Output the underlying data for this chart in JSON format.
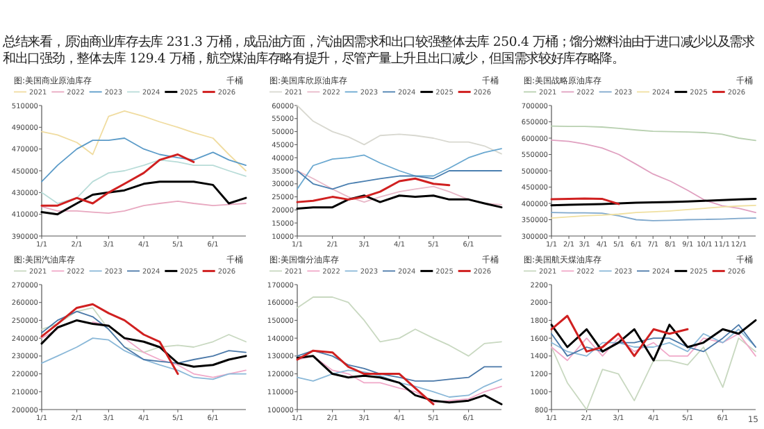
{
  "chart_data": [
    {
      "type": "other",
      "annotations": [
        "总结来看，原油商业库存去库 231.3 万桶，成品油方面，汽油因需求和出口较强整体去库 250.4 万桶；馏分燃料油由于进口减少以及需求和出口强劲，整体去库 129.4 万桶，航空煤油库存略有提升，尽管产量上升且出口减少，但国需求较好库存略降。",
        "15"
      ]
    },
    {
      "type": "line",
      "title": "图:美国商业原油库存",
      "ylabel": "千桶",
      "legend": "top",
      "x": [
        "--01-01",
        "--01-15",
        "--02-01",
        "--02-15",
        "--03-01",
        "--03-15",
        "--04-01",
        "--04-15",
        "--05-01",
        "--05-15",
        "--06-01",
        "--06-15",
        "--06-30"
      ],
      "xlim": [
        "--01-01",
        "--06-30"
      ],
      "xticks": [
        {
          "value": "--01-01",
          "label": "1/1"
        },
        {
          "value": "--02-01",
          "label": "2/1"
        },
        {
          "value": "--03-01",
          "label": "3/1"
        },
        {
          "value": "--04-01",
          "label": "4/1"
        },
        {
          "value": "--05-01",
          "label": "5/1"
        },
        {
          "value": "--06-01",
          "label": "6/1"
        }
      ],
      "ylim": [
        390000,
        510000
      ],
      "yticks": [
        390000,
        410000,
        430000,
        450000,
        470000,
        490000,
        510000
      ],
      "series": [
        {
          "name": "2021",
          "color": "#f0dca0",
          "values": [
            486000,
            483000,
            476000,
            465000,
            500000,
            505000,
            500000,
            495000,
            490000,
            485000,
            480000,
            465000,
            450000
          ]
        },
        {
          "name": "2022",
          "color": "#e8a8c0",
          "values": [
            417000,
            413000,
            413000,
            412000,
            411000,
            413000,
            418000,
            420000,
            422000,
            420000,
            418000,
            419000,
            420000
          ]
        },
        {
          "name": "2023",
          "color": "#5b9bc8",
          "values": [
            440000,
            455000,
            470000,
            478000,
            478000,
            480000,
            470000,
            465000,
            462000,
            460000,
            467000,
            460000,
            455000
          ]
        },
        {
          "name": "2024",
          "color": "#b8dcd8",
          "values": [
            430000,
            420000,
            425000,
            440000,
            448000,
            450000,
            455000,
            460000,
            458000,
            455000,
            455000,
            450000,
            445000
          ]
        },
        {
          "name": "2025",
          "color": "#000000",
          "values": [
            412000,
            410000,
            420000,
            428000,
            430000,
            432000,
            438000,
            440000,
            440000,
            440000,
            437000,
            420000,
            425000
          ]
        },
        {
          "name": "2026",
          "color": "#d02020",
          "values": [
            418000,
            418000,
            425000,
            420000,
            430000,
            438000,
            448000,
            460000,
            465000,
            458000,
            null,
            null,
            null
          ]
        }
      ]
    },
    {
      "type": "line",
      "title": "图:美国库欣原油库存",
      "ylabel": "千桶",
      "legend": "top",
      "x": [
        "--01-01",
        "--01-15",
        "--02-01",
        "--02-15",
        "--03-01",
        "--03-15",
        "--04-01",
        "--04-15",
        "--05-01",
        "--05-15",
        "--06-01",
        "--06-15",
        "--06-30"
      ],
      "xlim": [
        "--01-01",
        "--06-30"
      ],
      "xticks": [
        {
          "value": "--01-01",
          "label": "1/1"
        },
        {
          "value": "--02-01",
          "label": "2/1"
        },
        {
          "value": "--03-01",
          "label": "3/1"
        },
        {
          "value": "--04-01",
          "label": "4/1"
        },
        {
          "value": "--05-01",
          "label": "5/1"
        },
        {
          "value": "--06-01",
          "label": "6/1"
        }
      ],
      "ylim": [
        10000,
        60000
      ],
      "yticks": [
        10000,
        15000,
        20000,
        25000,
        30000,
        35000,
        40000,
        45000,
        50000,
        55000,
        60000
      ],
      "series": [
        {
          "name": "2021",
          "color": "#d8d8d0",
          "values": [
            60000,
            54000,
            50000,
            48000,
            45000,
            48500,
            49000,
            48500,
            47500,
            46000,
            46000,
            44500,
            41500
          ]
        },
        {
          "name": "2022",
          "color": "#e8b8c8",
          "values": [
            35000,
            32000,
            28000,
            25000,
            23000,
            25000,
            27000,
            28000,
            29000,
            27000,
            24000,
            22500,
            22000
          ]
        },
        {
          "name": "2023",
          "color": "#6aa8d0",
          "values": [
            28000,
            37000,
            39500,
            40000,
            41000,
            38000,
            35000,
            33000,
            33000,
            36000,
            40000,
            42000,
            43500
          ]
        },
        {
          "name": "2024",
          "color": "#4a7fb0",
          "values": [
            35000,
            30000,
            28000,
            30000,
            31000,
            32000,
            33000,
            33000,
            32000,
            35000,
            35000,
            35000,
            35000
          ]
        },
        {
          "name": "2025",
          "color": "#000000",
          "values": [
            20500,
            21000,
            21000,
            24000,
            25500,
            23000,
            25500,
            25000,
            25500,
            24000,
            24000,
            22500,
            21000
          ]
        },
        {
          "name": "2026",
          "color": "#d02020",
          "values": [
            23000,
            23500,
            25000,
            24000,
            25000,
            27000,
            31000,
            32000,
            30000,
            29500,
            null,
            null,
            null
          ]
        }
      ]
    },
    {
      "type": "line",
      "title": "图:美国战略原油库存",
      "ylabel": "千桶",
      "legend": "top",
      "x": [
        "--01-01",
        "--02-01",
        "--03-01",
        "--04-01",
        "--05-01",
        "--06-01",
        "--07-01",
        "--08-01",
        "--09-01",
        "--10-01",
        "--11-01",
        "--12-01",
        "--12-31"
      ],
      "xlim": [
        "--01-01",
        "--12-31"
      ],
      "xticks": [
        {
          "value": "--01-01",
          "label": "1/1"
        },
        {
          "value": "--02-01",
          "label": "2/1"
        },
        {
          "value": "--03-01",
          "label": "3/1"
        },
        {
          "value": "--04-01",
          "label": "4/1"
        },
        {
          "value": "--05-01",
          "label": "5/1"
        },
        {
          "value": "--06-01",
          "label": "6/1"
        },
        {
          "value": "--07-01",
          "label": "7/1"
        },
        {
          "value": "--08-01",
          "label": "8/1"
        },
        {
          "value": "--09-01",
          "label": "9/1"
        },
        {
          "value": "--10-01",
          "label": "10/1"
        },
        {
          "value": "--11-01",
          "label": "11/1"
        },
        {
          "value": "--12-01",
          "label": "12/1"
        }
      ],
      "ylim": [
        300000,
        700000
      ],
      "yticks": [
        300000,
        350000,
        400000,
        450000,
        500000,
        550000,
        600000,
        650000,
        700000
      ],
      "series": [
        {
          "name": "2021",
          "color": "#b8d0b0",
          "values": [
            637000,
            636000,
            636000,
            634000,
            630000,
            625000,
            621000,
            620000,
            619000,
            617000,
            612000,
            600000,
            593000
          ]
        },
        {
          "name": "2022",
          "color": "#e0a0c0",
          "values": [
            594000,
            590000,
            582000,
            570000,
            550000,
            520000,
            490000,
            468000,
            440000,
            410000,
            393000,
            385000,
            372000
          ]
        },
        {
          "name": "2023",
          "color": "#7fa8cc",
          "values": [
            372000,
            371000,
            371000,
            370000,
            362000,
            350000,
            347000,
            348000,
            350000,
            351000,
            352000,
            354000,
            355000
          ]
        },
        {
          "name": "2024",
          "color": "#f0e0a0",
          "values": [
            355000,
            359000,
            362000,
            364000,
            367000,
            372000,
            374000,
            377000,
            381000,
            385000,
            389000,
            392000,
            394000
          ]
        },
        {
          "name": "2025",
          "color": "#000000",
          "values": [
            394000,
            396000,
            397000,
            398000,
            400000,
            402000,
            403000,
            404000,
            406000,
            408000,
            410000,
            412000,
            414000
          ]
        },
        {
          "name": "2026",
          "color": "#d02020",
          "values": [
            413000,
            414000,
            415000,
            414000,
            398000,
            null,
            null,
            null,
            null,
            null,
            null,
            null,
            null
          ]
        }
      ]
    },
    {
      "type": "line",
      "title": "图:美国汽油库存",
      "ylabel": "千桶",
      "legend": "top",
      "x": [
        "--01-01",
        "--01-15",
        "--02-01",
        "--02-15",
        "--03-01",
        "--03-15",
        "--04-01",
        "--04-15",
        "--05-01",
        "--05-15",
        "--06-01",
        "--06-15",
        "--06-30"
      ],
      "xlim": [
        "--01-01",
        "--06-30"
      ],
      "xticks": [
        {
          "value": "--01-01",
          "label": "1/1"
        },
        {
          "value": "--02-01",
          "label": "2/1"
        },
        {
          "value": "--03-01",
          "label": "3/1"
        },
        {
          "value": "--04-01",
          "label": "4/1"
        },
        {
          "value": "--05-01",
          "label": "5/1"
        },
        {
          "value": "--06-01",
          "label": "6/1"
        }
      ],
      "ylim": [
        200000,
        270000
      ],
      "yticks": [
        200000,
        210000,
        220000,
        230000,
        240000,
        250000,
        260000,
        270000
      ],
      "series": [
        {
          "name": "2021",
          "color": "#c8d8c0",
          "values": [
            245000,
            248000,
            255000,
            257000,
            245000,
            235000,
            232000,
            235000,
            236000,
            235000,
            238000,
            242000,
            238000
          ]
        },
        {
          "name": "2022",
          "color": "#f0a8c8",
          "values": [
            240000,
            245000,
            null,
            249000,
            247000,
            240000,
            232000,
            228000,
            225000,
            220000,
            218000,
            220000,
            222000
          ]
        },
        {
          "name": "2023",
          "color": "#8ab8d8",
          "values": [
            226000,
            230000,
            235000,
            240000,
            239000,
            233000,
            228000,
            225000,
            222000,
            218000,
            217000,
            220000,
            220000
          ]
        },
        {
          "name": "2024",
          "color": "#4a78a8",
          "values": [
            243000,
            250000,
            255000,
            252000,
            245000,
            235000,
            228000,
            227000,
            226000,
            228000,
            230000,
            233000,
            232000
          ]
        },
        {
          "name": "2025",
          "color": "#000000",
          "values": [
            237000,
            246000,
            250000,
            248000,
            247000,
            240000,
            238000,
            235000,
            226000,
            224000,
            225000,
            228000,
            230000
          ]
        },
        {
          "name": "2026",
          "color": "#d02020",
          "values": [
            241000,
            248000,
            257000,
            259000,
            254000,
            250000,
            242000,
            238000,
            220000,
            null,
            null,
            null,
            null
          ]
        }
      ]
    },
    {
      "type": "line",
      "title": "图:美国馏分油库存",
      "ylabel": "千桶",
      "legend": "top",
      "x": [
        "--01-01",
        "--01-15",
        "--02-01",
        "--02-15",
        "--03-01",
        "--03-15",
        "--04-01",
        "--04-15",
        "--05-01",
        "--05-15",
        "--06-01",
        "--06-15",
        "--06-30"
      ],
      "xlim": [
        "--01-01",
        "--06-30"
      ],
      "xticks": [
        {
          "value": "--01-01",
          "label": "1/1"
        },
        {
          "value": "--02-01",
          "label": "2/1"
        },
        {
          "value": "--03-01",
          "label": "3/1"
        },
        {
          "value": "--04-01",
          "label": "4/1"
        },
        {
          "value": "--05-01",
          "label": "5/1"
        },
        {
          "value": "--06-01",
          "label": "6/1"
        }
      ],
      "ylim": [
        100000,
        170000
      ],
      "yticks": [
        100000,
        110000,
        120000,
        130000,
        140000,
        150000,
        160000,
        170000
      ],
      "series": [
        {
          "name": "2021",
          "color": "#c8d8c0",
          "values": [
            157000,
            163000,
            163000,
            160000,
            150000,
            138000,
            140000,
            145000,
            140000,
            136000,
            130000,
            137000,
            138000
          ]
        },
        {
          "name": "2022",
          "color": "#f0a8c8",
          "values": [
            128000,
            130000,
            122000,
            120000,
            115000,
            115000,
            112000,
            110000,
            104000,
            105000,
            106000,
            110000,
            113000
          ]
        },
        {
          "name": "2023",
          "color": "#8ab8d8",
          "values": [
            118000,
            116000,
            120000,
            122000,
            121000,
            119000,
            115000,
            113000,
            110000,
            107000,
            108000,
            113000,
            117000
          ]
        },
        {
          "name": "2024",
          "color": "#4a78a8",
          "values": [
            130000,
            133000,
            130000,
            125000,
            123000,
            120000,
            118000,
            116000,
            116000,
            117000,
            118000,
            124000,
            124000
          ]
        },
        {
          "name": "2025",
          "color": "#000000",
          "values": [
            129000,
            130000,
            120000,
            118000,
            119000,
            118000,
            115000,
            108000,
            105000,
            104000,
            105000,
            108000,
            103000
          ]
        },
        {
          "name": "2026",
          "color": "#d02020",
          "values": [
            128000,
            133000,
            132000,
            124000,
            120000,
            120000,
            120000,
            112000,
            103000,
            null,
            null,
            null,
            null
          ]
        }
      ]
    },
    {
      "type": "line",
      "title": "图:美国航天煤油库存",
      "ylabel": "千桶",
      "legend": "top",
      "x": [
        "--01-01",
        "--01-15",
        "--02-01",
        "--02-15",
        "--03-01",
        "--03-15",
        "--04-01",
        "--04-15",
        "--05-01",
        "--05-15",
        "--06-01",
        "--06-15",
        "--06-30"
      ],
      "xlim": [
        "--01-01",
        "--06-30"
      ],
      "xticks": [
        {
          "value": "--01-01",
          "label": "1/1"
        },
        {
          "value": "--02-01",
          "label": "2/1"
        },
        {
          "value": "--03-01",
          "label": "3/1"
        },
        {
          "value": "--04-01",
          "label": "4/1"
        },
        {
          "value": "--05-01",
          "label": "5/1"
        },
        {
          "value": "--06-01",
          "label": "6/1"
        }
      ],
      "ylim": [
        800,
        2200
      ],
      "yticks": [
        800,
        1000,
        1200,
        1400,
        1600,
        1800,
        2000,
        2200
      ],
      "series": [
        {
          "name": "2021",
          "color": "#c8d8c0",
          "values": [
            1500,
            1100,
            800,
            1250,
            1200,
            900,
            1350,
            1350,
            1300,
            1500,
            1050,
            1600,
            1450
          ]
        },
        {
          "name": "2022",
          "color": "#f0a8c8",
          "values": [
            1500,
            1350,
            1600,
            1400,
            1600,
            1450,
            1550,
            1400,
            1400,
            1600,
            1550,
            1650,
            1400
          ]
        },
        {
          "name": "2023",
          "color": "#8ab8d8",
          "values": [
            1550,
            1450,
            1400,
            1550,
            1550,
            1500,
            1500,
            1550,
            1450,
            1650,
            1550,
            1700,
            1500
          ]
        },
        {
          "name": "2024",
          "color": "#4a78a8",
          "values": [
            1650,
            1400,
            1500,
            1450,
            1550,
            1550,
            1600,
            1600,
            1500,
            1450,
            1600,
            1750,
            1500
          ]
        },
        {
          "name": "2025",
          "color": "#000000",
          "values": [
            1750,
            1500,
            1700,
            1450,
            1550,
            1700,
            1350,
            1750,
            1500,
            1550,
            1700,
            1650,
            1800
          ]
        },
        {
          "name": "2026",
          "color": "#d02020",
          "values": [
            1700,
            1850,
            1450,
            1500,
            1650,
            1400,
            1700,
            1650,
            1700,
            null,
            null,
            null,
            null
          ]
        }
      ]
    }
  ]
}
